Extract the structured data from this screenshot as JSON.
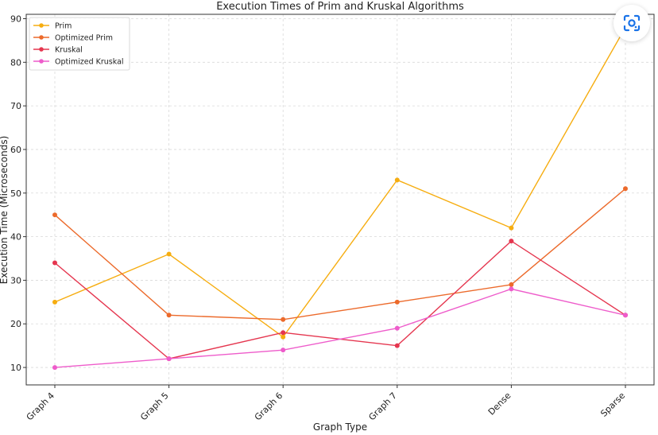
{
  "chart_data": {
    "type": "line",
    "title": "Execution Times of Prim and Kruskal Algorithms",
    "xlabel": "Graph Type",
    "ylabel": "Execution Time (Microseconds)",
    "categories": [
      "Graph 4",
      "Graph 5",
      "Graph 6",
      "Graph 7",
      "Dense",
      "Sparse"
    ],
    "ylim": [
      6,
      91
    ],
    "yticks": [
      10,
      20,
      30,
      40,
      50,
      60,
      70,
      80,
      90
    ],
    "grid": true,
    "legend_position": "top-left",
    "series": [
      {
        "name": "Prim",
        "color": "#f6ad10",
        "values": [
          25,
          36,
          17,
          53,
          42,
          88
        ]
      },
      {
        "name": "Optimized Prim",
        "color": "#ec6a2b",
        "values": [
          45,
          22,
          21,
          25,
          29,
          51
        ]
      },
      {
        "name": "Kruskal",
        "color": "#e5364f",
        "values": [
          34,
          12,
          18,
          15,
          39,
          22
        ]
      },
      {
        "name": "Optimized Kruskal",
        "color": "#ee5ccb",
        "values": [
          10,
          12,
          14,
          19,
          28,
          22
        ]
      }
    ]
  },
  "overlay": {
    "icon": "google-lens-icon",
    "color": "#1a73e8"
  }
}
